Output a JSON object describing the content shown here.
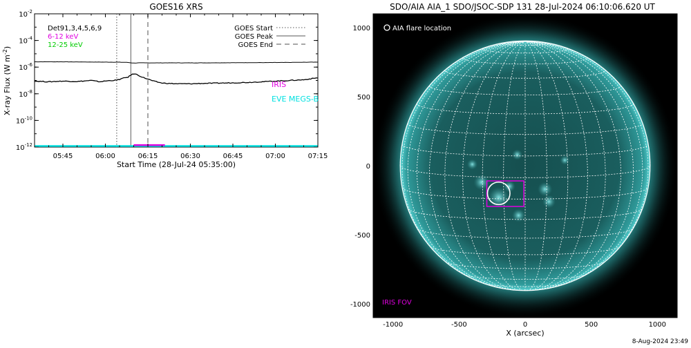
{
  "chart_data": [
    {
      "type": "line",
      "title": "GOES16 XRS",
      "xlabel": "Start Time (28-Jul-24 05:35:00)",
      "ylabel": "X-ray Flux (W m",
      "ylabel_sup": "-2",
      "ylabel_close": ")",
      "y_scale": "log",
      "ylim": [
        1e-12,
        0.01
      ],
      "xlim": [
        "05:35",
        "07:15"
      ],
      "x_ticks": [
        "05:45",
        "06:00",
        "06:15",
        "06:30",
        "06:45",
        "07:00",
        "07:15"
      ],
      "y_ticks": [
        {
          "base": "10",
          "exp": "-2",
          "value": -2
        },
        {
          "base": "10",
          "exp": "-4",
          "value": -4
        },
        {
          "base": "10",
          "exp": "-6",
          "value": -6
        },
        {
          "base": "10",
          "exp": "-8",
          "value": -8
        },
        {
          "base": "10",
          "exp": "-10",
          "value": -10
        },
        {
          "base": "10",
          "exp": "-12",
          "value": -12
        }
      ],
      "grid": false,
      "legend_left": [
        {
          "label": "Det91,3,4,5,6,9",
          "color": "#000000"
        },
        {
          "label": "6-12 keV",
          "color": "#e000e0"
        },
        {
          "label": "12-25 keV",
          "color": "#00cc00"
        }
      ],
      "legend_right": [
        {
          "label": "GOES Start",
          "style": "dotted"
        },
        {
          "label": "GOES Peak",
          "style": "solid"
        },
        {
          "label": "GOES End",
          "style": "dashed"
        }
      ],
      "event_lines": {
        "start": "06:04",
        "peak": "06:09",
        "end": "06:15"
      },
      "series": [
        {
          "color": "#000000",
          "x_minutes_after_0535": [
            0,
            10,
            20,
            30,
            33,
            35,
            37,
            40,
            50,
            60,
            70,
            80,
            90,
            100
          ],
          "log10_flux": [
            -5.6,
            -5.6,
            -5.62,
            -5.63,
            -5.65,
            -5.7,
            -5.68,
            -5.68,
            -5.68,
            -5.68,
            -5.67,
            -5.66,
            -5.65,
            -5.62
          ]
        },
        {
          "color": "#000000",
          "x_minutes_after_0535": [
            0,
            5,
            10,
            15,
            20,
            23,
            26,
            29,
            31,
            33,
            34,
            35,
            36,
            38,
            40,
            42,
            45,
            50,
            55,
            60,
            65,
            70,
            75,
            80,
            85,
            90,
            95,
            100
          ],
          "log10_flux": [
            -7.05,
            -7.1,
            -7.05,
            -7.08,
            -7.0,
            -7.1,
            -7.02,
            -6.98,
            -6.85,
            -6.75,
            -6.6,
            -6.5,
            -6.55,
            -6.75,
            -6.9,
            -7.05,
            -7.2,
            -7.25,
            -7.25,
            -7.22,
            -7.2,
            -7.18,
            -7.15,
            -7.1,
            -7.05,
            -7.0,
            -6.95,
            -6.8
          ]
        }
      ],
      "annotations": [
        {
          "text": "IRIS",
          "color": "#e000e0"
        },
        {
          "text": "EVE MEGS-B",
          "color": "#00e0e0"
        }
      ],
      "iris_bar": {
        "from": "06:10",
        "to": "06:21",
        "color": "#e000e0"
      },
      "eve_baseline": {
        "color": "#00e0e0"
      }
    },
    {
      "type": "image",
      "title": "SDO/AIA AIA_1 SDO/JSOC-SDP 131 28-Jul-2024 06:10:06.620 UT",
      "xlabel": "X (arcsec)",
      "ylabel": "",
      "xlim": [
        -1150,
        1150
      ],
      "ylim": [
        -1100,
        1100
      ],
      "x_ticks": [
        "-1000",
        "-500",
        "0",
        "500",
        "1000"
      ],
      "y_ticks": [
        "1000",
        "500",
        "0",
        "-500",
        "-1000"
      ],
      "grid_lines": "heliographic 10-degree grid",
      "solar_radius_arcsec": 945,
      "flare_location": {
        "x": -200,
        "y": -200,
        "r": 85
      },
      "iris_fov": {
        "x0": -290,
        "x1": -10,
        "y0": -295,
        "y1": -110
      },
      "legend_text": "AIA flare location",
      "iris_label": "IRIS FOV",
      "colors": {
        "background": "#000000",
        "disk": "#1e6e6e",
        "corona": "#3fc8c8",
        "grid": "#ffffff",
        "fov": "#e000e0",
        "flare": "#ffffff"
      }
    }
  ],
  "timestamp": "8-Aug-2024 23:49"
}
